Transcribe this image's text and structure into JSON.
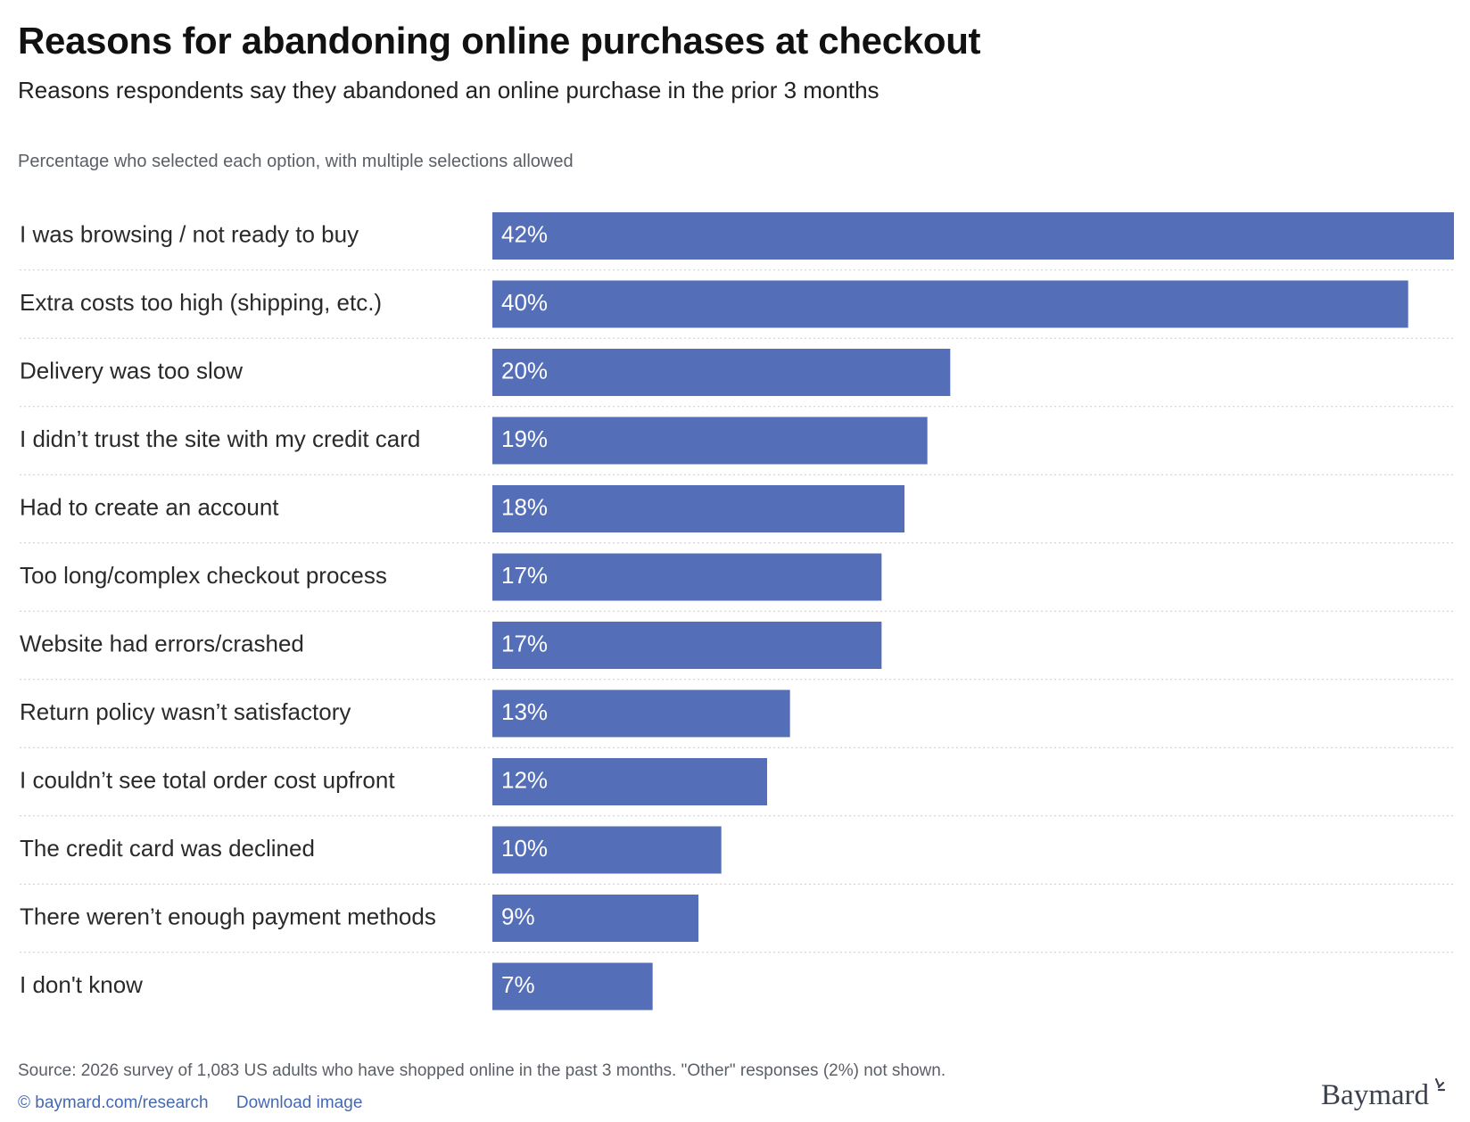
{
  "header": {
    "title": "Reasons for abandoning online purchases at checkout",
    "subtitle": "Reasons respondents say they abandoned an online purchase in the prior 3 months",
    "note": "Percentage who selected each option, with multiple selections allowed"
  },
  "chart_data": {
    "type": "bar",
    "orientation": "horizontal",
    "categories": [
      "I was browsing / not ready to buy",
      "Extra costs too high (shipping, etc.)",
      "Delivery was too slow",
      "I didn’t trust the site with my credit card",
      "Had to create an account",
      "Too long/complex checkout process",
      "Website had errors/crashed",
      "Return policy wasn’t satisfactory",
      "I couldn’t see total order cost upfront",
      "The credit card was declined",
      "There weren’t enough payment methods",
      "I don't know"
    ],
    "values": [
      42,
      40,
      20,
      19,
      18,
      17,
      17,
      13,
      12,
      10,
      9,
      7
    ],
    "value_labels": [
      "42%",
      "40%",
      "20%",
      "19%",
      "18%",
      "17%",
      "17%",
      "13%",
      "12%",
      "10%",
      "9%",
      "7%"
    ],
    "xlim": [
      0,
      42
    ],
    "bar_color": "#546fb8",
    "value_label_color": "#ffffff",
    "grid": false,
    "legend": "none"
  },
  "footer": {
    "source": "Source: 2026 survey of 1,083 US adults who have shopped online in the past 3 months. \"Other\" responses (2%) not shown.",
    "copyright_link": "© baymard.com/research",
    "download_link": "Download image",
    "logo_text": "Baymard"
  }
}
